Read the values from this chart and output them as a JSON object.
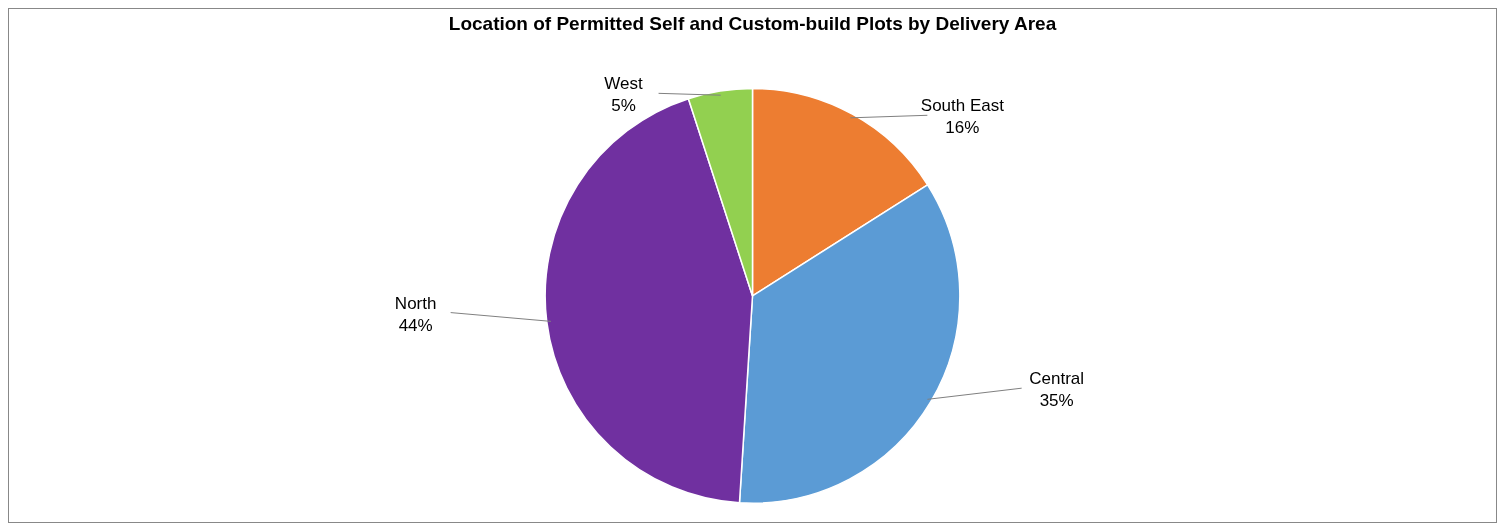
{
  "chart_data": {
    "type": "pie",
    "title": "Location of Permitted Self and Custom-build Plots by Delivery Area",
    "categories": [
      "South East",
      "Central",
      "North",
      "West"
    ],
    "values": [
      16,
      35,
      44,
      5
    ],
    "colors": [
      "#ed7d31",
      "#5b9bd5",
      "#7030a0",
      "#92d050"
    ],
    "value_labels": [
      "16%",
      "35%",
      "44%",
      "5%"
    ],
    "legend": false
  }
}
